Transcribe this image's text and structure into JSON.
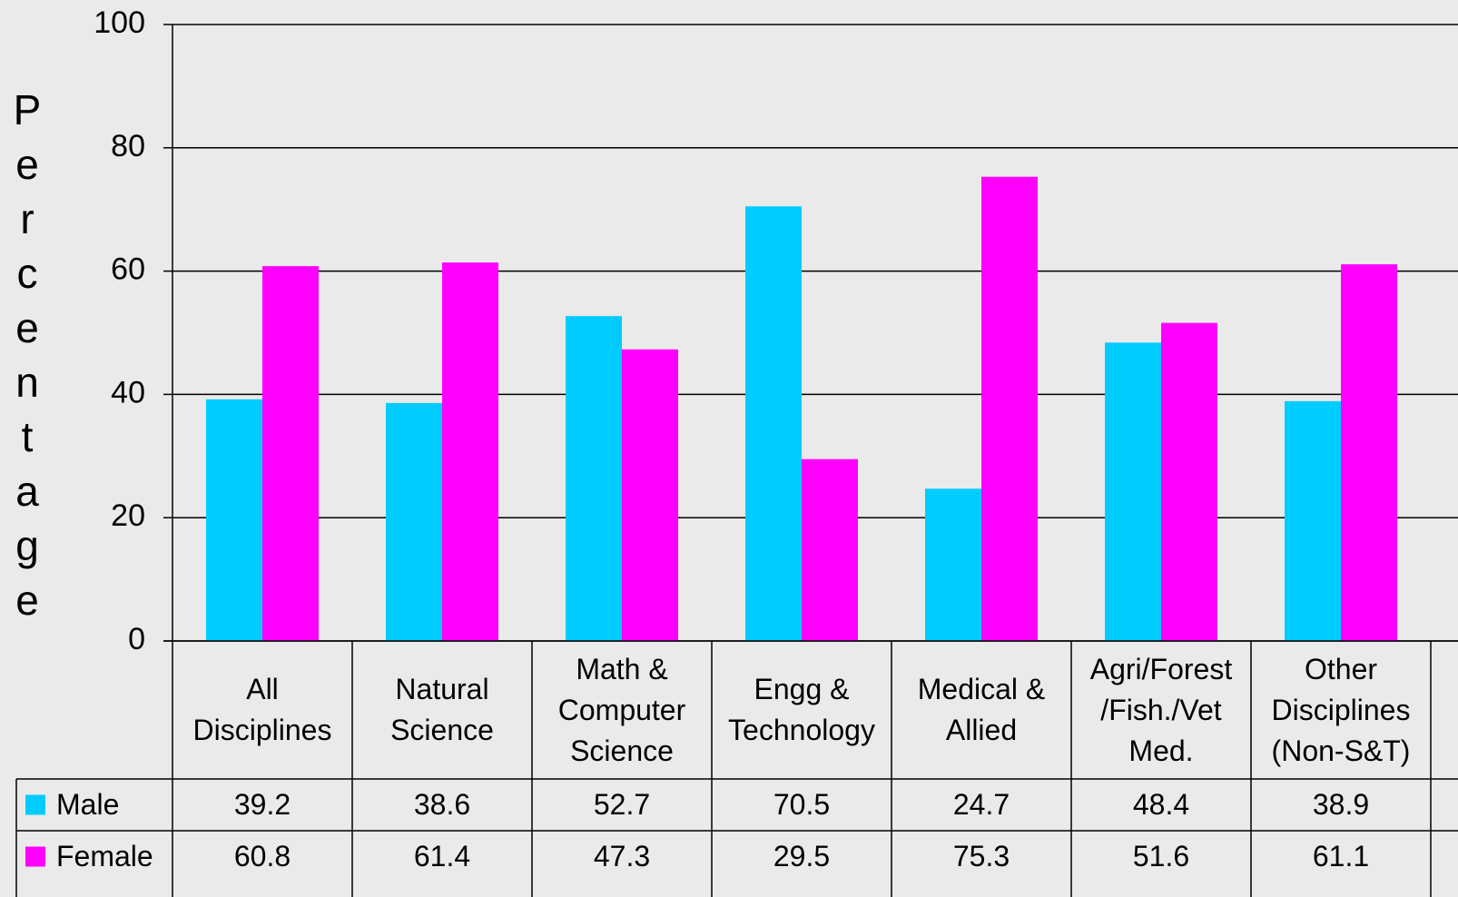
{
  "chart_data": {
    "type": "bar",
    "y_label": "Percentage",
    "categories": [
      "All\nDisciplines",
      "Natural\nScience",
      "Math &\nComputer\nScience",
      "Engg &\nTechnology",
      "Medical &\nAllied",
      "Agri/Forest\n/Fish./Vet\nMed.",
      "Other\nDisciplines\n(Non-S&T)"
    ],
    "series": [
      {
        "name": "Male",
        "color": "#00ccff",
        "values": [
          39.2,
          38.6,
          52.7,
          70.5,
          24.7,
          48.4,
          38.9
        ]
      },
      {
        "name": "Female",
        "color": "#ff00ff",
        "values": [
          60.8,
          61.4,
          47.3,
          29.5,
          75.3,
          51.6,
          61.1
        ]
      }
    ],
    "ylim": [
      0,
      100
    ],
    "yticks": [
      0,
      20,
      40,
      60,
      80,
      100
    ],
    "grid": true
  }
}
